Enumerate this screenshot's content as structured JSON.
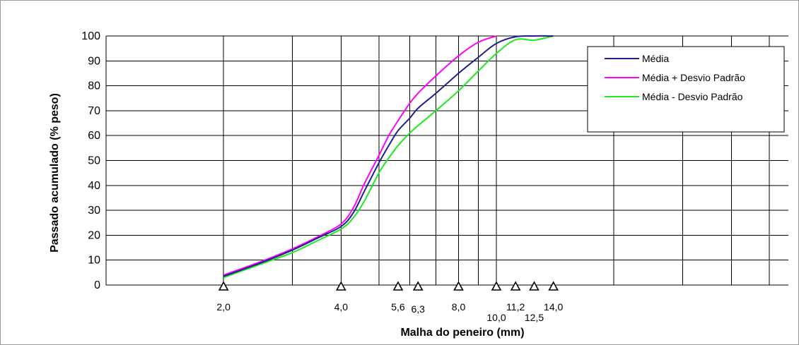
{
  "chart_data": {
    "type": "line",
    "xlabel": "Malha do peneiro (mm)",
    "ylabel": "Passado acumulado (% peso)",
    "ylim": [
      0,
      100
    ],
    "yticks": [
      "0",
      "10",
      "20",
      "30",
      "40",
      "50",
      "60",
      "70",
      "80",
      "90",
      "100"
    ],
    "x_scale": "log",
    "xlim": [
      1.0,
      56.0
    ],
    "grid": true,
    "legend_position": "top-right",
    "sieve_ticks": [
      {
        "value": 2.0,
        "label": "2,0"
      },
      {
        "value": 4.0,
        "label": "4,0"
      },
      {
        "value": 5.6,
        "label": "5,6"
      },
      {
        "value": 6.3,
        "label": "6,3"
      },
      {
        "value": 8.0,
        "label": "8,0"
      },
      {
        "value": 10.0,
        "label": "10,0"
      },
      {
        "value": 11.2,
        "label": "11,2"
      },
      {
        "value": 12.5,
        "label": "12,5"
      },
      {
        "value": 14.0,
        "label": "14,0"
      }
    ],
    "grid_x": [
      2,
      3,
      4,
      5,
      6,
      7,
      8,
      9,
      10,
      20,
      30,
      40,
      50
    ],
    "series": [
      {
        "name": "Média",
        "color": "#1f1f8f",
        "x": [
          2.0,
          2.5,
          3.0,
          3.5,
          4.0,
          4.3,
          4.6,
          5.0,
          5.3,
          5.6,
          6.0,
          6.3,
          7.0,
          8.0,
          9.0,
          10.0,
          11.2,
          12.5,
          14.0
        ],
        "y": [
          3.5,
          9,
          14,
          19,
          23.5,
          29,
          38,
          49,
          56,
          62,
          67,
          71,
          77,
          85,
          91.5,
          97,
          99.7,
          100,
          100
        ]
      },
      {
        "name": "Média + Desvio Padrão",
        "color": "#ff00ff",
        "x": [
          2.0,
          2.5,
          3.0,
          3.5,
          4.0,
          4.3,
          4.6,
          5.0,
          5.3,
          5.6,
          6.0,
          6.3,
          7.0,
          8.0,
          9.0,
          10.0
        ],
        "y": [
          4,
          9.5,
          14.5,
          19.5,
          24.5,
          31,
          41,
          52,
          60,
          66,
          73,
          77,
          84,
          92,
          97.5,
          100
        ]
      },
      {
        "name": "Média - Desvio Padrão",
        "color": "#1ee81e",
        "x": [
          2.0,
          2.5,
          3.0,
          3.5,
          4.0,
          4.3,
          4.6,
          5.0,
          5.3,
          5.6,
          6.0,
          6.3,
          7.0,
          8.0,
          9.0,
          10.0,
          11.2,
          12.5,
          14.0
        ],
        "y": [
          3,
          8.5,
          13,
          18,
          22.5,
          27,
          34,
          45,
          51,
          56,
          61,
          64,
          70,
          78,
          86,
          93,
          98.5,
          98.3,
          100
        ]
      }
    ]
  }
}
